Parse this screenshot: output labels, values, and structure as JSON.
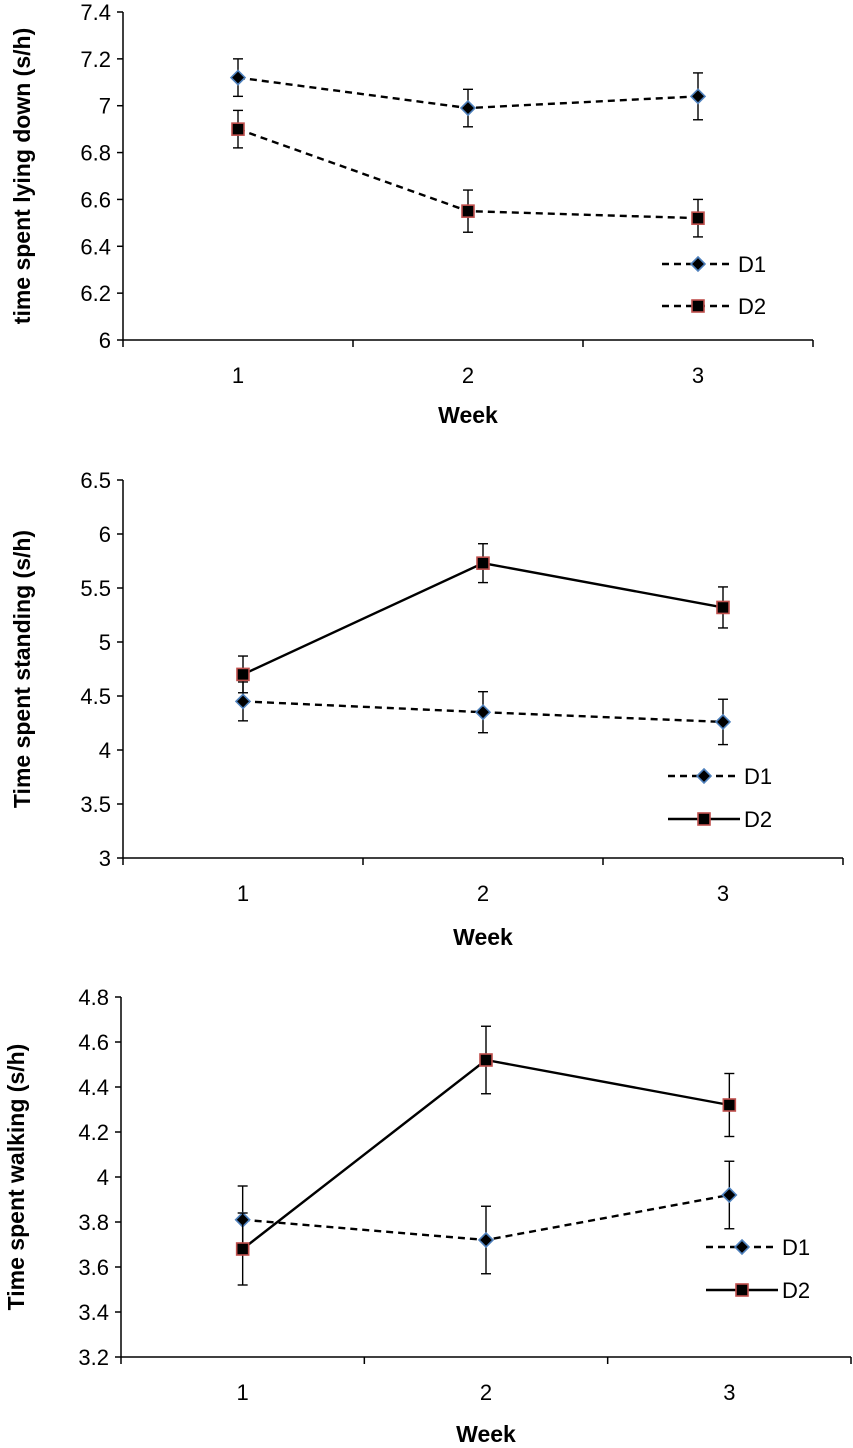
{
  "colors": {
    "axis": "#000000",
    "line": "#000000",
    "d1_marker_fill": "#000000",
    "d1_marker_stroke": "#4f81bd",
    "d2_marker_fill": "#000000",
    "d2_marker_stroke": "#c0504d",
    "background": "#ffffff"
  },
  "chart_data": [
    {
      "type": "line",
      "title": "",
      "xlabel": "Week",
      "ylabel": "time spent lying down (s/h)",
      "categories": [
        "1",
        "2",
        "3"
      ],
      "ylim": [
        6,
        7.4
      ],
      "yticks": [
        "6",
        "6.2",
        "6.4",
        "6.6",
        "6.8",
        "7",
        "7.2",
        "7.4"
      ],
      "grid": false,
      "legend_position": "bottom-right",
      "series": [
        {
          "name": "D1",
          "values": [
            7.12,
            6.99,
            7.04
          ],
          "errors": [
            0.08,
            0.08,
            0.1
          ],
          "line_style": "dashed",
          "marker": "diamond"
        },
        {
          "name": "D2",
          "values": [
            6.9,
            6.55,
            6.52
          ],
          "errors": [
            0.08,
            0.09,
            0.08
          ],
          "line_style": "dashed",
          "marker": "square"
        }
      ]
    },
    {
      "type": "line",
      "title": "",
      "xlabel": "Week",
      "ylabel": "Time spent standing (s/h)",
      "categories": [
        "1",
        "2",
        "3"
      ],
      "ylim": [
        3,
        6.5
      ],
      "yticks": [
        "3",
        "3.5",
        "4",
        "4.5",
        "5",
        "5.5",
        "6",
        "6.5"
      ],
      "grid": false,
      "legend_position": "bottom-right",
      "series": [
        {
          "name": "D1",
          "values": [
            4.45,
            4.35,
            4.26
          ],
          "errors": [
            0.18,
            0.19,
            0.21
          ],
          "line_style": "dashed",
          "marker": "diamond"
        },
        {
          "name": "D2",
          "values": [
            4.7,
            5.73,
            5.32
          ],
          "errors": [
            0.17,
            0.18,
            0.19
          ],
          "line_style": "solid",
          "marker": "square"
        }
      ]
    },
    {
      "type": "line",
      "title": "",
      "xlabel": "Week",
      "ylabel": "Time spent walking (s/h)",
      "categories": [
        "1",
        "2",
        "3"
      ],
      "ylim": [
        3.2,
        4.8
      ],
      "yticks": [
        "3.2",
        "3.4",
        "3.6",
        "3.8",
        "4",
        "4.2",
        "4.4",
        "4.6",
        "4.8"
      ],
      "grid": false,
      "legend_position": "bottom-right",
      "series": [
        {
          "name": "D1",
          "values": [
            3.81,
            3.72,
            3.92
          ],
          "errors": [
            0.15,
            0.15,
            0.15
          ],
          "line_style": "dashed",
          "marker": "diamond"
        },
        {
          "name": "D2",
          "values": [
            3.68,
            4.52,
            4.32
          ],
          "errors": [
            0.16,
            0.15,
            0.14
          ],
          "line_style": "solid",
          "marker": "square"
        }
      ]
    }
  ]
}
